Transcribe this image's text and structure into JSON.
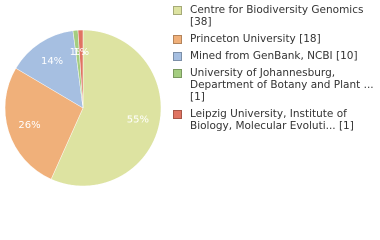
{
  "chart_data": {
    "type": "pie",
    "categories": [
      "Centre for Biodiversity Genomics [38]",
      "Princeton University [18]",
      "Mined from GenBank, NCBI [10]",
      "University of Johannesburg, Department of Botany and Plant ... [1]",
      "Leipzig University, Institute of Biology, Molecular Evoluti... [1]"
    ],
    "values": [
      55,
      26,
      14,
      1,
      1
    ],
    "value_labels": [
      "55%",
      "26%",
      "14%",
      "1%",
      "1%"
    ],
    "colors": [
      "#dde3a1",
      "#f0b07a",
      "#a6bfe1",
      "#a4cd80",
      "#e07462"
    ]
  }
}
